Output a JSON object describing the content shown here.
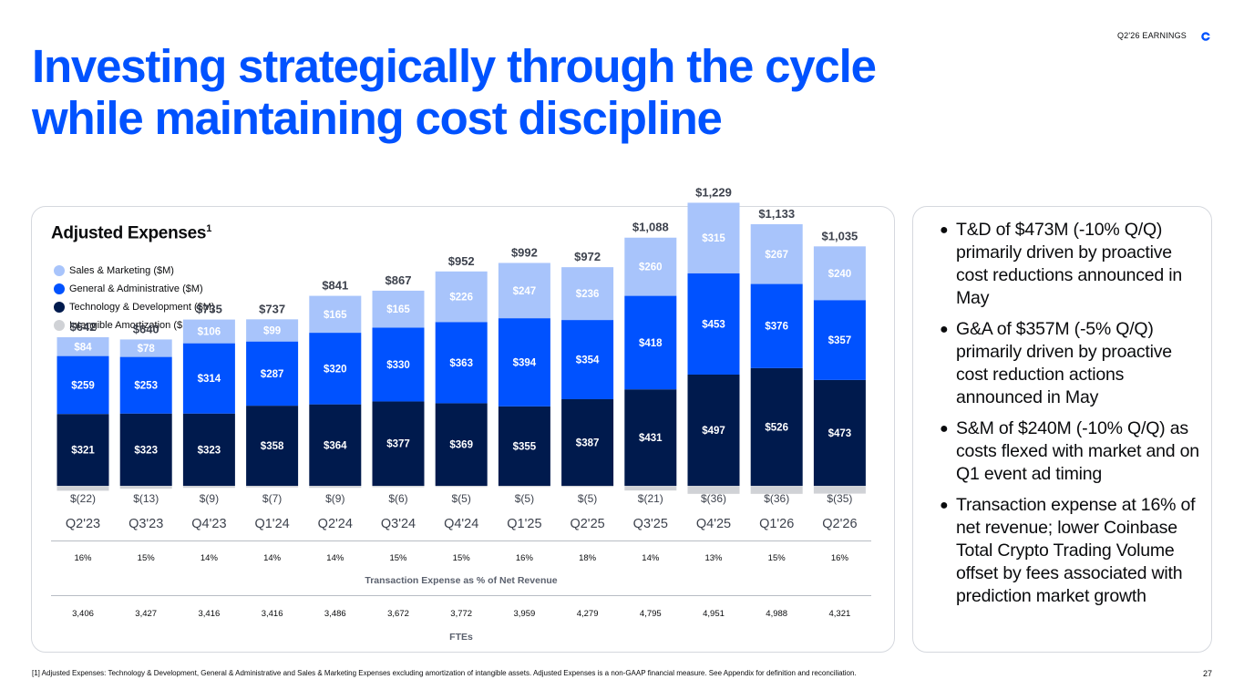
{
  "header": {
    "tag": "Q2'26 EARNINGS",
    "logo_icon": "coinbase-logo-icon"
  },
  "title": {
    "line1": "Investing strategically through the cycle",
    "line2": "while maintaining cost discipline"
  },
  "chart_card": {
    "title": "Adjusted Expenses",
    "title_superscript": "1"
  },
  "legend": [
    {
      "label": "Sales & Marketing ($M)",
      "color": "#a8c4fb"
    },
    {
      "label": "General & Administrative ($M)",
      "color": "#0052ff"
    },
    {
      "label": "Technology & Development ($M)",
      "color": "#001a4d"
    },
    {
      "label": "Intangible Amortization ($M)",
      "color": "#d0d2d6"
    }
  ],
  "chart_data": {
    "type": "bar",
    "stacked": true,
    "categories": [
      "Q2'23",
      "Q3'23",
      "Q4'23",
      "Q1'24",
      "Q2'24",
      "Q3'24",
      "Q4'24",
      "Q1'25",
      "Q2'25",
      "Q3'25",
      "Q4'25",
      "Q1'26",
      "Q2'26"
    ],
    "series": [
      {
        "name": "Technology & Development ($M)",
        "color": "#001a4d",
        "values": [
          321,
          323,
          323,
          358,
          364,
          377,
          369,
          355,
          387,
          431,
          497,
          526,
          473
        ],
        "labels": [
          "$321",
          "$323",
          "$323",
          "$358",
          "$364",
          "$377",
          "$369",
          "$355",
          "$387",
          "$431",
          "$497",
          "$526",
          "$473"
        ]
      },
      {
        "name": "General & Administrative ($M)",
        "color": "#0052ff",
        "values": [
          259,
          253,
          314,
          287,
          320,
          330,
          363,
          394,
          354,
          418,
          453,
          376,
          357
        ],
        "labels": [
          "$259",
          "$253",
          "$314",
          "$287",
          "$320",
          "$330",
          "$363",
          "$394",
          "$354",
          "$418",
          "$453",
          "$376",
          "$357"
        ]
      },
      {
        "name": "Sales & Marketing ($M)",
        "color": "#a8c4fb",
        "values": [
          84,
          78,
          106,
          99,
          165,
          165,
          226,
          247,
          236,
          260,
          315,
          267,
          240
        ],
        "labels": [
          "$84",
          "$78",
          "$106",
          "$99",
          "$165",
          "$165",
          "$226",
          "$247",
          "$236",
          "$260",
          "$315",
          "$267",
          "$240"
        ]
      },
      {
        "name": "Intangible Amortization ($M)",
        "color": "#d0d2d6",
        "values": [
          -22,
          -13,
          -9,
          -7,
          -9,
          -6,
          -5,
          -5,
          -5,
          -21,
          -36,
          -36,
          -35
        ],
        "labels": [
          "$(22)",
          "$(13)",
          "$(9)",
          "$(7)",
          "$(9)",
          "$(6)",
          "$(5)",
          "$(5)",
          "$(5)",
          "$(21)",
          "$(36)",
          "$(36)",
          "$(35)"
        ]
      }
    ],
    "totals": [
      642,
      640,
      735,
      737,
      841,
      867,
      952,
      992,
      972,
      1088,
      1229,
      1133,
      1035
    ],
    "total_labels": [
      "$642",
      "$640",
      "$735",
      "$737",
      "$841",
      "$867",
      "$952",
      "$992",
      "$972",
      "$1,088",
      "$1,229",
      "$1,133",
      "$1,035"
    ],
    "ylim": [
      -40,
      1300
    ]
  },
  "transaction_expense": {
    "caption": "Transaction Expense as % of Net Revenue",
    "values": [
      "16%",
      "15%",
      "14%",
      "14%",
      "14%",
      "15%",
      "15%",
      "16%",
      "18%",
      "14%",
      "13%",
      "15%",
      "16%"
    ]
  },
  "ftes": {
    "caption": "FTEs",
    "values": [
      "3,406",
      "3,427",
      "3,416",
      "3,416",
      "3,486",
      "3,672",
      "3,772",
      "3,959",
      "4,279",
      "4,795",
      "4,951",
      "4,988",
      "4,321"
    ]
  },
  "notes": [
    "T&D of $473M (-10% Q/Q) primarily driven by proactive cost reductions announced in May",
    "G&A of $357M (-5% Q/Q) primarily driven by proactive cost reduction actions announced in May",
    "S&M of $240M (-10% Q/Q) as costs flexed with market and on Q1 event ad timing",
    "Transaction expense at 16% of net revenue; lower Coinbase Total Crypto Trading Volume offset by fees associated with prediction market growth"
  ],
  "footnote": "[1] Adjusted Expenses: Technology & Development, General & Administrative and Sales & Marketing Expenses excluding amortization of intangible assets. Adjusted Expenses is a non-GAAP financial measure. See Appendix for definition and reconciliation.",
  "page_number": "27"
}
